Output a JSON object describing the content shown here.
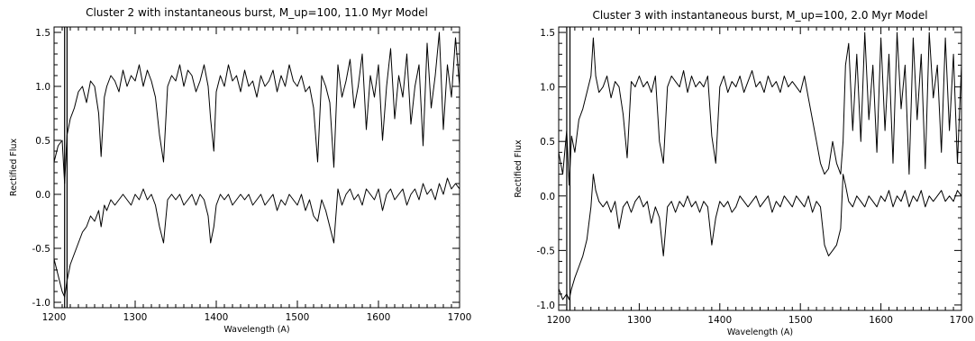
{
  "chart_data": [
    {
      "type": "line",
      "title": "Cluster 2 with instantaneous burst, M_up=100, 11.0 Myr Model",
      "xlabel": "Wavelength (A)",
      "ylabel": "Rectified Flux",
      "xlim": [
        1200,
        1700
      ],
      "ylim": [
        -1.05,
        1.55
      ],
      "xticks": [
        "1200",
        "1300",
        "1400",
        "1500",
        "1600",
        "1700"
      ],
      "yticks": [
        "-1.0",
        "-0.5",
        "0.0",
        "0.5",
        "1.0",
        "1.5"
      ],
      "xtick_values": [
        1200,
        1300,
        1400,
        1500,
        1600,
        1700
      ],
      "ytick_values": [
        -1.0,
        -0.5,
        0.0,
        0.5,
        1.0,
        1.5
      ],
      "grid": false,
      "vertical_markers": [
        1213,
        1216
      ],
      "series": [
        {
          "x": [
            1200,
            1205,
            1210,
            1213,
            1216,
            1220,
            1225,
            1230,
            1235,
            1240,
            1245,
            1250,
            1255,
            1258,
            1262,
            1265,
            1270,
            1275,
            1280,
            1285,
            1290,
            1295,
            1300,
            1305,
            1310,
            1315,
            1320,
            1325,
            1330,
            1335,
            1340,
            1345,
            1350,
            1355,
            1360,
            1365,
            1370,
            1375,
            1380,
            1385,
            1390,
            1393,
            1397,
            1400,
            1405,
            1410,
            1415,
            1420,
            1425,
            1430,
            1435,
            1440,
            1445,
            1450,
            1455,
            1460,
            1465,
            1470,
            1475,
            1480,
            1485,
            1490,
            1495,
            1500,
            1505,
            1510,
            1515,
            1520,
            1525,
            1530,
            1535,
            1540,
            1545,
            1550,
            1555,
            1560,
            1565,
            1570,
            1575,
            1580,
            1585,
            1590,
            1595,
            1600,
            1605,
            1610,
            1615,
            1620,
            1625,
            1630,
            1635,
            1640,
            1645,
            1650,
            1655,
            1660,
            1665,
            1670,
            1675,
            1680,
            1685,
            1690,
            1695,
            1700
          ],
          "y": [
            0.3,
            0.45,
            0.5,
            0.1,
            0.55,
            0.7,
            0.8,
            0.95,
            1.0,
            0.85,
            1.05,
            1.0,
            0.75,
            0.35,
            0.9,
            1.0,
            1.1,
            1.05,
            0.95,
            1.15,
            1.0,
            1.1,
            1.05,
            1.2,
            1.0,
            1.15,
            1.05,
            0.9,
            0.55,
            0.3,
            1.0,
            1.1,
            1.05,
            1.2,
            1.0,
            1.15,
            1.1,
            0.95,
            1.05,
            1.2,
            1.0,
            0.7,
            0.4,
            0.95,
            1.1,
            1.0,
            1.2,
            1.05,
            1.1,
            0.95,
            1.15,
            1.0,
            1.05,
            0.9,
            1.1,
            1.0,
            1.05,
            1.15,
            0.95,
            1.1,
            1.0,
            1.2,
            1.05,
            1.0,
            1.1,
            0.95,
            1.0,
            0.8,
            0.3,
            1.1,
            1.0,
            0.85,
            0.25,
            1.2,
            0.9,
            1.05,
            1.25,
            0.8,
            1.0,
            1.3,
            0.6,
            1.1,
            0.9,
            1.2,
            0.5,
            1.0,
            1.35,
            0.7,
            1.1,
            0.9,
            1.3,
            0.65,
            1.0,
            1.2,
            0.45,
            1.4,
            0.8,
            1.1,
            1.5,
            0.6,
            1.2,
            0.9,
            1.45,
            1.0
          ]
        },
        {
          "x": [
            1200,
            1205,
            1210,
            1213,
            1216,
            1220,
            1225,
            1230,
            1235,
            1240,
            1245,
            1250,
            1255,
            1258,
            1262,
            1265,
            1270,
            1275,
            1280,
            1285,
            1290,
            1295,
            1300,
            1305,
            1310,
            1315,
            1320,
            1325,
            1330,
            1335,
            1340,
            1345,
            1350,
            1355,
            1360,
            1365,
            1370,
            1375,
            1380,
            1385,
            1390,
            1393,
            1397,
            1400,
            1405,
            1410,
            1415,
            1420,
            1425,
            1430,
            1435,
            1440,
            1445,
            1450,
            1455,
            1460,
            1465,
            1470,
            1475,
            1480,
            1485,
            1490,
            1495,
            1500,
            1505,
            1510,
            1515,
            1520,
            1525,
            1530,
            1535,
            1540,
            1545,
            1550,
            1555,
            1560,
            1565,
            1570,
            1575,
            1580,
            1585,
            1590,
            1595,
            1600,
            1605,
            1610,
            1615,
            1620,
            1625,
            1630,
            1635,
            1640,
            1645,
            1650,
            1655,
            1660,
            1665,
            1670,
            1675,
            1680,
            1685,
            1690,
            1695,
            1700
          ],
          "y": [
            -0.6,
            -0.75,
            -0.9,
            -0.95,
            -0.8,
            -0.65,
            -0.55,
            -0.45,
            -0.35,
            -0.3,
            -0.2,
            -0.25,
            -0.15,
            -0.3,
            -0.1,
            -0.15,
            -0.05,
            -0.1,
            -0.05,
            0.0,
            -0.05,
            -0.1,
            0.0,
            -0.05,
            0.05,
            -0.05,
            0.0,
            -0.1,
            -0.3,
            -0.45,
            -0.05,
            0.0,
            -0.05,
            0.0,
            -0.1,
            -0.05,
            0.0,
            -0.1,
            0.0,
            -0.05,
            -0.2,
            -0.45,
            -0.3,
            -0.1,
            0.0,
            -0.05,
            0.0,
            -0.1,
            -0.05,
            0.0,
            -0.05,
            0.0,
            -0.1,
            -0.05,
            0.0,
            -0.1,
            -0.05,
            0.0,
            -0.15,
            -0.05,
            -0.1,
            0.0,
            -0.05,
            -0.1,
            0.0,
            -0.15,
            -0.05,
            -0.2,
            -0.25,
            -0.05,
            -0.15,
            -0.3,
            -0.45,
            0.05,
            -0.1,
            0.0,
            0.05,
            -0.05,
            0.0,
            -0.1,
            0.05,
            0.0,
            -0.05,
            0.05,
            -0.15,
            0.0,
            0.05,
            -0.05,
            0.0,
            0.05,
            -0.1,
            0.0,
            0.05,
            -0.05,
            0.1,
            0.0,
            0.05,
            -0.05,
            0.1,
            0.0,
            0.15,
            0.05,
            0.1,
            0.05
          ]
        }
      ]
    },
    {
      "type": "line",
      "title": "Cluster 3 with instantaneous burst, M_up=100, 2.0 Myr Model",
      "xlabel": "Wavelength (A)",
      "ylabel": "Rectified Flux",
      "xlim": [
        1200,
        1700
      ],
      "ylim": [
        -1.05,
        1.55
      ],
      "xticks": [
        "1200",
        "1300",
        "1400",
        "1500",
        "1600",
        "1700"
      ],
      "yticks": [
        "-1.0",
        "-0.5",
        "0.0",
        "0.5",
        "1.0",
        "1.5"
      ],
      "xtick_values": [
        1200,
        1300,
        1400,
        1500,
        1600,
        1700
      ],
      "ytick_values": [
        -1.0,
        -0.5,
        0.0,
        0.5,
        1.0,
        1.5
      ],
      "grid": false,
      "vertical_markers": [
        1210,
        1214
      ],
      "series": [
        {
          "x": [
            1200,
            1205,
            1210,
            1213,
            1216,
            1220,
            1225,
            1230,
            1235,
            1240,
            1243,
            1246,
            1250,
            1255,
            1260,
            1265,
            1270,
            1275,
            1280,
            1285,
            1290,
            1295,
            1300,
            1305,
            1310,
            1315,
            1320,
            1325,
            1330,
            1335,
            1340,
            1345,
            1350,
            1355,
            1360,
            1365,
            1370,
            1375,
            1380,
            1385,
            1390,
            1395,
            1400,
            1405,
            1410,
            1415,
            1420,
            1425,
            1430,
            1435,
            1440,
            1445,
            1450,
            1455,
            1460,
            1465,
            1470,
            1475,
            1480,
            1485,
            1490,
            1495,
            1500,
            1505,
            1510,
            1515,
            1520,
            1525,
            1530,
            1535,
            1540,
            1545,
            1550,
            1553,
            1556,
            1560,
            1565,
            1570,
            1575,
            1580,
            1585,
            1590,
            1595,
            1600,
            1605,
            1610,
            1615,
            1620,
            1625,
            1630,
            1635,
            1640,
            1645,
            1650,
            1655,
            1660,
            1665,
            1670,
            1675,
            1680,
            1685,
            1690,
            1695,
            1700
          ],
          "y": [
            0.4,
            0.2,
            0.6,
            0.1,
            0.55,
            0.4,
            0.7,
            0.8,
            0.95,
            1.1,
            1.45,
            1.1,
            0.95,
            1.0,
            1.1,
            0.9,
            1.05,
            1.0,
            0.75,
            0.35,
            1.05,
            1.0,
            1.1,
            1.0,
            1.05,
            0.95,
            1.1,
            0.5,
            0.3,
            1.0,
            1.1,
            1.05,
            1.0,
            1.15,
            0.95,
            1.1,
            1.0,
            1.05,
            1.0,
            1.1,
            0.55,
            0.3,
            1.0,
            1.1,
            0.95,
            1.05,
            1.0,
            1.1,
            0.95,
            1.05,
            1.15,
            1.0,
            1.05,
            0.95,
            1.1,
            1.0,
            1.05,
            0.95,
            1.1,
            1.0,
            1.05,
            1.0,
            0.95,
            1.1,
            0.9,
            0.7,
            0.5,
            0.3,
            0.2,
            0.25,
            0.5,
            0.3,
            0.2,
            0.5,
            1.2,
            1.4,
            0.6,
            1.3,
            0.5,
            1.5,
            0.7,
            1.2,
            0.4,
            1.45,
            0.6,
            1.3,
            0.3,
            1.5,
            0.8,
            1.2,
            0.2,
            1.45,
            0.7,
            1.3,
            0.25,
            1.5,
            0.9,
            1.2,
            0.4,
            1.45,
            0.6,
            1.3,
            0.3,
            1.2
          ]
        },
        {
          "x": [
            1200,
            1205,
            1210,
            1213,
            1216,
            1220,
            1225,
            1230,
            1235,
            1240,
            1243,
            1246,
            1250,
            1255,
            1260,
            1265,
            1270,
            1275,
            1280,
            1285,
            1290,
            1295,
            1300,
            1305,
            1310,
            1315,
            1320,
            1325,
            1330,
            1335,
            1340,
            1345,
            1350,
            1355,
            1360,
            1365,
            1370,
            1375,
            1380,
            1385,
            1390,
            1395,
            1400,
            1405,
            1410,
            1415,
            1420,
            1425,
            1430,
            1435,
            1440,
            1445,
            1450,
            1455,
            1460,
            1465,
            1470,
            1475,
            1480,
            1485,
            1490,
            1495,
            1500,
            1505,
            1510,
            1515,
            1520,
            1525,
            1530,
            1535,
            1540,
            1545,
            1550,
            1553,
            1556,
            1560,
            1565,
            1570,
            1575,
            1580,
            1585,
            1590,
            1595,
            1600,
            1605,
            1610,
            1615,
            1620,
            1625,
            1630,
            1635,
            1640,
            1645,
            1650,
            1655,
            1660,
            1665,
            1670,
            1675,
            1680,
            1685,
            1690,
            1695,
            1700
          ],
          "y": [
            -0.85,
            -0.95,
            -0.9,
            -0.95,
            -0.85,
            -0.75,
            -0.65,
            -0.55,
            -0.4,
            -0.1,
            0.2,
            0.05,
            -0.05,
            -0.1,
            -0.05,
            -0.15,
            -0.05,
            -0.3,
            -0.1,
            -0.05,
            -0.15,
            -0.05,
            0.0,
            -0.1,
            -0.05,
            -0.25,
            -0.1,
            -0.2,
            -0.55,
            -0.1,
            -0.05,
            -0.15,
            -0.05,
            -0.1,
            0.0,
            -0.1,
            -0.05,
            -0.15,
            -0.05,
            -0.1,
            -0.45,
            -0.2,
            -0.05,
            -0.1,
            -0.05,
            -0.15,
            -0.1,
            0.0,
            -0.05,
            -0.1,
            -0.05,
            0.0,
            -0.1,
            -0.05,
            0.0,
            -0.15,
            -0.05,
            -0.1,
            0.0,
            -0.05,
            -0.1,
            0.0,
            -0.05,
            -0.1,
            0.0,
            -0.15,
            -0.05,
            -0.1,
            -0.45,
            -0.55,
            -0.5,
            -0.45,
            -0.3,
            0.2,
            0.1,
            -0.05,
            -0.1,
            0.0,
            -0.05,
            -0.1,
            0.0,
            -0.05,
            -0.1,
            0.0,
            -0.05,
            0.05,
            -0.1,
            0.0,
            -0.05,
            0.05,
            -0.1,
            0.0,
            -0.05,
            0.05,
            -0.1,
            0.0,
            -0.05,
            0.0,
            0.05,
            -0.05,
            0.0,
            -0.05,
            0.05,
            0.0
          ]
        }
      ]
    }
  ]
}
